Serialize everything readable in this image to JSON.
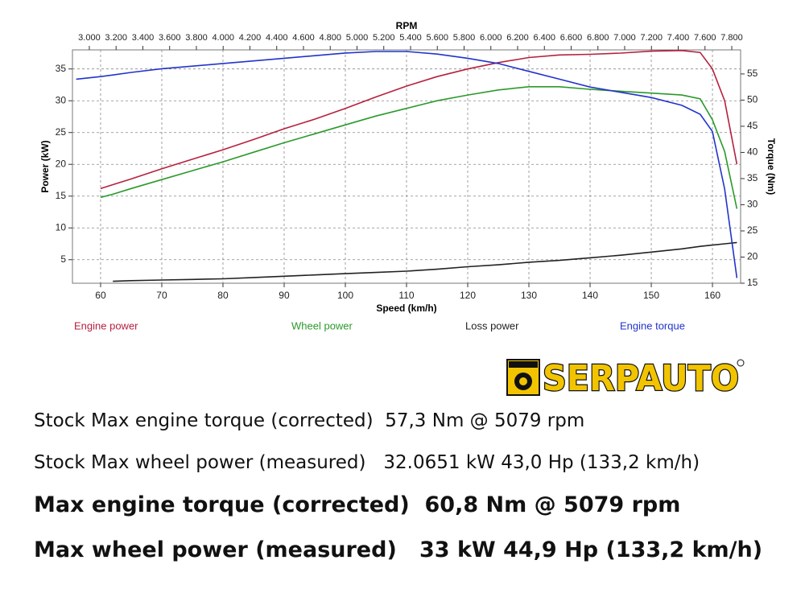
{
  "chart_data": {
    "type": "line",
    "x_label": "Speed (km/h)",
    "x2_label": "RPM",
    "y_label": "Power (kW)",
    "y2_label": "Torque (Nm)",
    "x": [
      56,
      60,
      62,
      65,
      70,
      75,
      80,
      85,
      90,
      95,
      100,
      105,
      110,
      115,
      120,
      125,
      130,
      135,
      140,
      145,
      150,
      155,
      158,
      160,
      162,
      164
    ],
    "xlim": [
      55.4,
      164.6
    ],
    "xticks": [
      60,
      70,
      80,
      90,
      100,
      110,
      120,
      130,
      140,
      150,
      160
    ],
    "x2lim": [
      2874,
      7866
    ],
    "x2ticks": [
      {
        "value": 3000,
        "label": "3.000"
      },
      {
        "value": 3200,
        "label": "3.200"
      },
      {
        "value": 3400,
        "label": "3.400"
      },
      {
        "value": 3600,
        "label": "3.600"
      },
      {
        "value": 3800,
        "label": "3.800"
      },
      {
        "value": 4000,
        "label": "4.000"
      },
      {
        "value": 4200,
        "label": "4.200"
      },
      {
        "value": 4400,
        "label": "4.400"
      },
      {
        "value": 4600,
        "label": "4.600"
      },
      {
        "value": 4800,
        "label": "4.800"
      },
      {
        "value": 5000,
        "label": "5.000"
      },
      {
        "value": 5200,
        "label": "5.200"
      },
      {
        "value": 5400,
        "label": "5.400"
      },
      {
        "value": 5600,
        "label": "5.600"
      },
      {
        "value": 5800,
        "label": "5.800"
      },
      {
        "value": 6000,
        "label": "6.000"
      },
      {
        "value": 6200,
        "label": "6.200"
      },
      {
        "value": 6400,
        "label": "6.400"
      },
      {
        "value": 6600,
        "label": "6.600"
      },
      {
        "value": 6800,
        "label": "6.800"
      },
      {
        "value": 7000,
        "label": "7.000"
      },
      {
        "value": 7200,
        "label": "7.200"
      },
      {
        "value": 7400,
        "label": "7.400"
      },
      {
        "value": 7600,
        "label": "7.600"
      },
      {
        "value": 7800,
        "label": "7.800"
      }
    ],
    "ylim": [
      1.3,
      38
    ],
    "yticks": [
      5,
      10,
      15,
      20,
      25,
      30,
      35
    ],
    "y2lim": [
      15,
      59.6
    ],
    "y2ticks": [
      15,
      20,
      25,
      30,
      35,
      40,
      45,
      50,
      55
    ],
    "grid": true,
    "series": [
      {
        "name": "Engine power",
        "color": "#b5203f",
        "values": [
          null,
          16.2,
          16.8,
          17.7,
          19.3,
          20.8,
          22.3,
          23.9,
          25.6,
          27.1,
          28.8,
          30.6,
          32.3,
          33.8,
          35.0,
          36.0,
          36.8,
          37.2,
          37.3,
          37.5,
          37.8,
          37.9,
          37.6,
          35.0,
          30.0,
          20.0
        ]
      },
      {
        "name": "Wheel power",
        "color": "#2a9a2a",
        "values": [
          null,
          14.8,
          15.3,
          16.2,
          17.6,
          19.0,
          20.4,
          21.9,
          23.4,
          24.8,
          26.2,
          27.6,
          28.8,
          30.0,
          30.9,
          31.7,
          32.2,
          32.2,
          31.8,
          31.5,
          31.2,
          30.9,
          30.3,
          27.0,
          22.0,
          13.0
        ]
      },
      {
        "name": "Loss power",
        "color": "#222222",
        "values": [
          null,
          null,
          1.6,
          1.7,
          1.8,
          1.9,
          2.0,
          2.2,
          2.4,
          2.6,
          2.8,
          3.0,
          3.2,
          3.5,
          3.9,
          4.2,
          4.6,
          4.9,
          5.3,
          5.7,
          6.2,
          6.7,
          7.1,
          7.3,
          7.5,
          7.7
        ]
      },
      {
        "name": "Engine torque",
        "color": "#2233cc",
        "axis": "y2",
        "values": [
          54.0,
          54.5,
          54.8,
          55.3,
          56.0,
          56.5,
          57.0,
          57.5,
          58.0,
          58.5,
          59.0,
          59.3,
          59.3,
          58.8,
          58.0,
          57.0,
          55.5,
          54.0,
          52.5,
          51.5,
          50.5,
          49.0,
          47.3,
          44.0,
          33.0,
          16.0
        ]
      }
    ]
  },
  "logo": "SERPAUTO",
  "notes": [
    "Stock Max engine torque (corrected)  57,3 Nm @ 5079 rpm",
    "Stock Max wheel power (measured)   32.0651 kW 43,0 Hp (133,2 km/h)",
    "Max engine torque (corrected)  60,8 Nm @ 5079 rpm",
    "Max wheel power (measured)   33 kW 44,9 Hp (133,2 km/h)"
  ]
}
